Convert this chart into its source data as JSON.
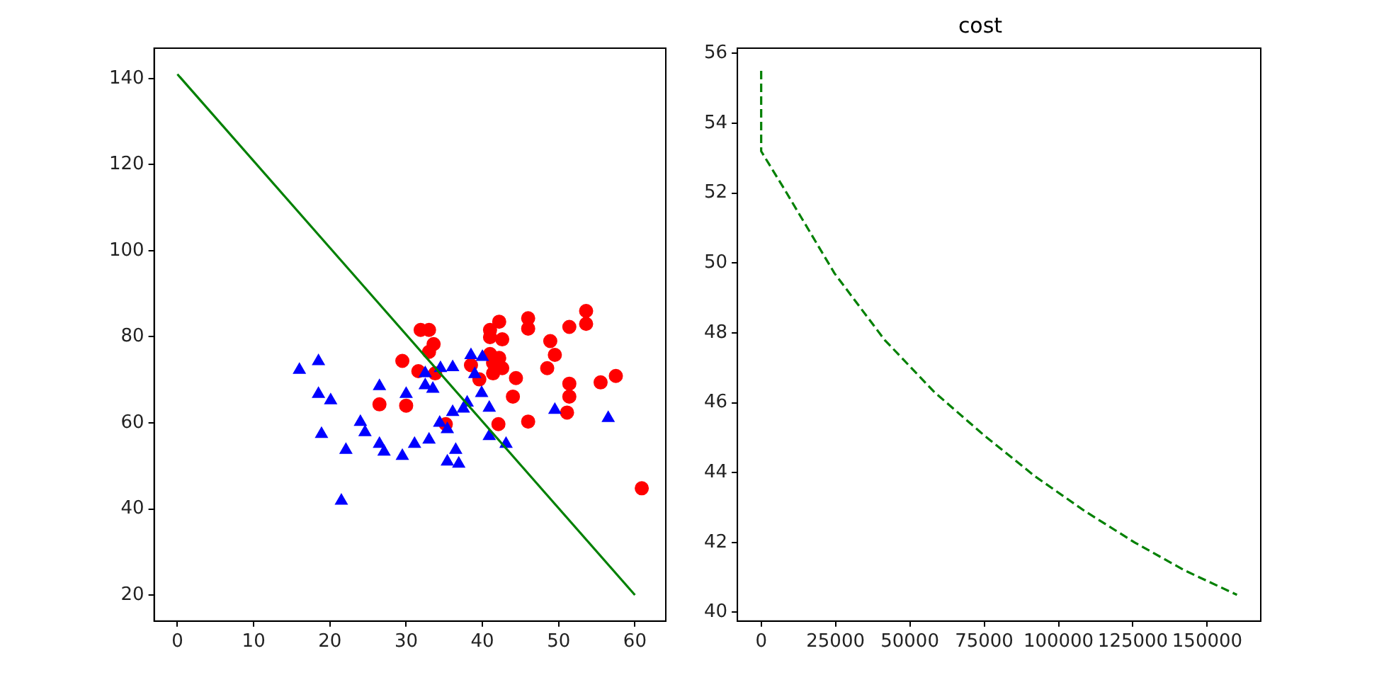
{
  "chart_data": [
    {
      "type": "scatter",
      "xlim": [
        -3.05,
        64.05
      ],
      "ylim": [
        13.95,
        147.05
      ],
      "xticks": [
        0,
        10,
        20,
        30,
        40,
        50,
        60
      ],
      "yticks": [
        20,
        40,
        60,
        80,
        100,
        120,
        140
      ],
      "grid": false,
      "legend": false,
      "series": [
        {
          "type": "scatter",
          "color": "#ff0000",
          "marker": "circle",
          "x": [
            31.9,
            33.0,
            33.6,
            33.0,
            29.5,
            31.6,
            33.8,
            26.5,
            30.0,
            35.2,
            38.5,
            39.6,
            41.0,
            41.0,
            42.2,
            42.6,
            41.0,
            42.2,
            41.4,
            41.4,
            42.6,
            44.4,
            44.0,
            42.1,
            46.0,
            46.0,
            46.0,
            48.9,
            49.5,
            48.5,
            51.4,
            53.6,
            53.6,
            51.4,
            51.4,
            51.1,
            55.5,
            57.5,
            60.9
          ],
          "values": [
            81.6,
            81.6,
            78.3,
            76.5,
            74.4,
            72.0,
            71.5,
            64.3,
            64.0,
            59.7,
            73.4,
            70.1,
            81.6,
            79.9,
            83.5,
            79.4,
            76.0,
            75.1,
            73.9,
            71.5,
            72.7,
            70.4,
            66.1,
            59.7,
            84.3,
            81.9,
            60.3,
            79.0,
            75.8,
            72.7,
            82.3,
            86.0,
            83.0,
            69.1,
            66.1,
            62.4,
            69.4,
            70.9,
            44.8
          ]
        },
        {
          "type": "scatter",
          "color": "#0000ff",
          "marker": "triangle",
          "x": [
            16.0,
            18.5,
            18.5,
            20.1,
            18.9,
            21.5,
            22.1,
            24.0,
            24.6,
            26.5,
            26.5,
            27.1,
            29.5,
            30.0,
            31.1,
            32.5,
            32.5,
            33.5,
            33.0,
            34.5,
            36.1,
            34.4,
            35.4,
            36.1,
            37.5,
            38.0,
            36.5,
            35.4,
            36.9,
            38.5,
            40.0,
            39.0,
            39.9,
            40.9,
            40.9,
            43.1,
            49.5,
            56.5
          ],
          "values": [
            72.3,
            74.3,
            66.7,
            65.2,
            57.4,
            41.9,
            53.7,
            60.2,
            57.8,
            68.5,
            55.1,
            53.3,
            52.3,
            66.7,
            55.1,
            71.5,
            68.7,
            67.9,
            56.1,
            72.7,
            72.9,
            60.0,
            58.5,
            62.5,
            63.3,
            64.7,
            53.7,
            51.0,
            50.5,
            75.7,
            75.3,
            71.3,
            66.9,
            63.5,
            56.9,
            55.1,
            63.0,
            61.1
          ]
        },
        {
          "type": "line",
          "color": "#008000",
          "marker": "none",
          "line_style": "solid",
          "x": [
            0,
            60
          ],
          "values": [
            141,
            20
          ]
        }
      ]
    },
    {
      "type": "line",
      "title": "cost",
      "xlim": [
        -8000,
        168000
      ],
      "ylim": [
        39.75,
        56.15
      ],
      "xticks": [
        0,
        25000,
        50000,
        75000,
        100000,
        125000,
        150000
      ],
      "yticks": [
        40,
        42,
        44,
        46,
        48,
        50,
        52,
        54,
        56
      ],
      "grid": false,
      "legend": false,
      "marker": "none",
      "line_style": "dashed",
      "series": [
        {
          "color": "#008000",
          "x": [
            0,
            0,
            7900,
            24700,
            41500,
            58300,
            75200,
            92000,
            108800,
            125600,
            142400,
            160000
          ],
          "values": [
            55.5,
            53.2,
            52.1,
            49.7,
            47.8,
            46.3,
            45.05,
            43.9,
            42.9,
            42.0,
            41.2,
            40.5
          ]
        }
      ]
    }
  ]
}
